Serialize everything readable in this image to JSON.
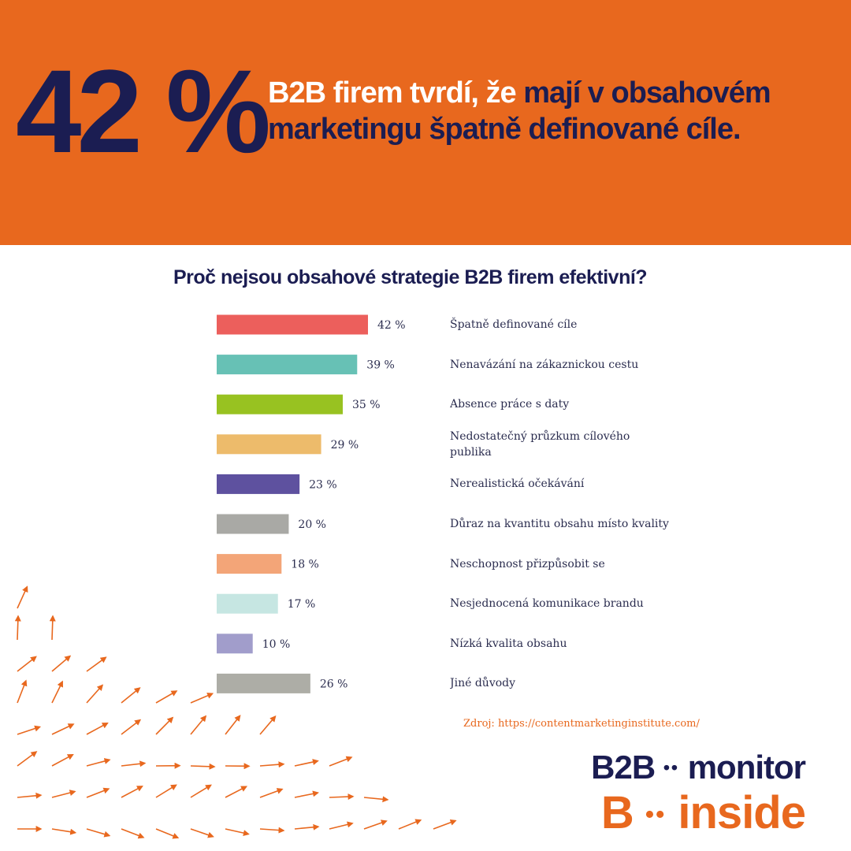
{
  "banner": {
    "big_value": "42 %",
    "headline_white": "B2B firem tvrdí, že",
    "headline_dark": " mají v obsahovém marketingu špatně definované cíle.",
    "background_color": "#E8681E",
    "dark_color": "#1B1D52"
  },
  "chart_data": {
    "type": "bar",
    "orientation": "horizontal",
    "title": "Proč nejsou obsahové strategie B2B firem efektivní?",
    "unit": "%",
    "categories": [
      "Špatně definované cíle",
      "Nenavázání na zákaznickou cestu",
      "Absence práce s daty",
      "Nedostatečný průzkum cílového publika",
      "Nerealistická očekávání",
      "Důraz na kvantitu obsahu místo kvality",
      "Neschopnost přizpůsobit se",
      "Nesjednocená komunikace brandu",
      "Nízká kvalita obsahu",
      "Jiné důvody"
    ],
    "values": [
      42,
      39,
      35,
      29,
      23,
      20,
      18,
      17,
      10,
      26
    ],
    "value_labels": [
      "42 %",
      "39 %",
      "35 %",
      "29 %",
      "23 %",
      "20 %",
      "18 %",
      "17 %",
      "10 %",
      "26 %"
    ],
    "colors": [
      "#EC5F5C",
      "#67C1B5",
      "#98C221",
      "#EDBB6B",
      "#5E519F",
      "#A9A9A5",
      "#F3A578",
      "#C6E6E2",
      "#A19DCB",
      "#ADADA6"
    ],
    "xlim": [
      0,
      42
    ],
    "grid": false,
    "legend": "none"
  },
  "source": "Zdroj: https://contentmarketinginstitute.com/",
  "logo": {
    "line1_left": "B2B",
    "line1_dots": "••",
    "line1_right": "monitor",
    "line2_left": "B",
    "line2_dots": "••",
    "line2_right": "inside"
  },
  "decor": {
    "arrow_color": "#E8681E",
    "icon": "arrow-field-icon"
  }
}
